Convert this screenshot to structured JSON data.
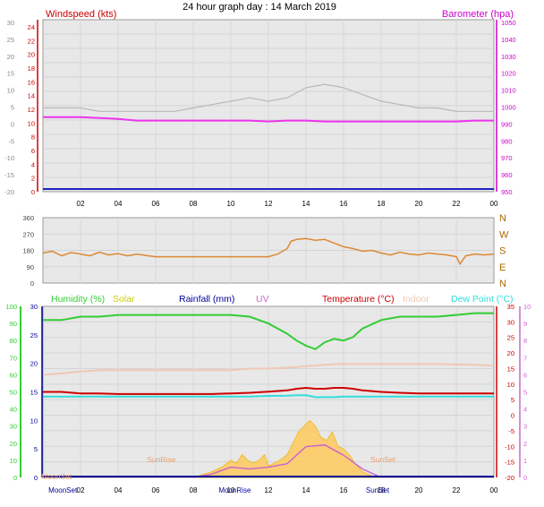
{
  "title": "24 hour graph day : 14 March 2019",
  "colors": {
    "wind_axis": "#cc0000",
    "baro_axis": "#cc00cc",
    "humidity": "#33cc33",
    "solar": "#cccc00",
    "rainfall": "#000099",
    "uv": "#cc66cc",
    "temperature": "#cc0000",
    "indoor": "#f0c8b4",
    "dewpoint": "#33dddd",
    "gust": "#b8b8b8",
    "wind_avg": "#2020c0",
    "barometer": "#ee33ee",
    "direction": "#dd8833",
    "solar_fill": "#ffcc66",
    "astro": "#e8a070",
    "plot_bg": "#e8e8e8"
  },
  "chart_data": [
    {
      "type": "line",
      "name": "wind-barometer",
      "labels": {
        "left": "Windspeed (kts)",
        "right": "Barometer (hpa)"
      },
      "x_ticks": [
        "02",
        "04",
        "06",
        "08",
        "10",
        "12",
        "14",
        "16",
        "18",
        "20",
        "22",
        "00"
      ],
      "y_left_ticks": [
        "24",
        "22",
        "20",
        "18",
        "16",
        "14",
        "12",
        "10",
        "8",
        "6",
        "4",
        "2",
        "0"
      ],
      "y_left_range": [
        0,
        24
      ],
      "y_outer_ticks": [
        "30",
        "25",
        "20",
        "15",
        "10",
        "5",
        "0",
        "-5",
        "-10",
        "-15",
        "-20"
      ],
      "y_right_ticks": [
        "1050",
        "1040",
        "1030",
        "1020",
        "1010",
        "1000",
        "990",
        "980",
        "970",
        "960",
        "950"
      ],
      "y_right_range": [
        950,
        1050
      ],
      "series": {
        "gust_x": [
          0,
          1,
          2,
          3,
          4,
          5,
          6,
          7,
          8,
          9,
          10,
          11,
          12,
          13,
          14,
          15,
          16,
          17,
          18,
          19,
          20,
          21,
          22,
          23,
          24
        ],
        "gust_y": [
          12,
          12,
          12,
          11.5,
          11.5,
          11.5,
          11.5,
          11.5,
          12,
          12.5,
          13,
          13.5,
          13,
          13.5,
          15,
          15.5,
          15,
          14,
          13,
          12.5,
          12,
          12,
          11.5,
          11.5,
          11.5
        ],
        "wind_y": [
          0,
          0,
          0,
          0,
          0,
          0,
          0,
          0,
          0,
          0,
          0,
          0,
          0,
          0,
          0,
          0,
          0,
          0,
          0,
          0,
          0,
          0,
          0,
          0,
          0
        ],
        "baro_x": [
          0,
          2,
          3,
          4,
          5,
          6,
          8,
          10,
          11,
          12,
          13,
          14,
          15,
          16,
          18,
          20,
          22,
          23,
          24
        ],
        "baro_y": [
          994,
          994,
          993.5,
          993,
          992,
          992,
          992,
          992,
          992,
          991.5,
          992,
          992,
          991.5,
          991.5,
          991.5,
          991.5,
          991.5,
          992,
          992
        ]
      }
    },
    {
      "type": "line",
      "name": "wind-direction",
      "y_left_ticks": [
        "360",
        "270",
        "180",
        "90",
        "0"
      ],
      "y_left_range": [
        0,
        360
      ],
      "y_right_labels": [
        "N",
        "W",
        "S",
        "E",
        "N"
      ],
      "series": {
        "dir_x": [
          0,
          0.5,
          1,
          1.5,
          2,
          2.5,
          3,
          3.5,
          4,
          4.5,
          5,
          5.5,
          6,
          8,
          10,
          12,
          12.5,
          13,
          13.2,
          13.5,
          14,
          14.5,
          15,
          15.5,
          16,
          16.5,
          17,
          17.5,
          18,
          18.5,
          19,
          19.5,
          20,
          20.5,
          21,
          21.5,
          22,
          22.2,
          22.5,
          23,
          23.5,
          24
        ],
        "dir_y": [
          165,
          175,
          150,
          168,
          160,
          150,
          170,
          155,
          162,
          150,
          160,
          152,
          145,
          145,
          145,
          145,
          160,
          190,
          230,
          240,
          245,
          235,
          240,
          220,
          200,
          190,
          175,
          180,
          165,
          155,
          170,
          160,
          155,
          165,
          160,
          155,
          145,
          105,
          150,
          160,
          155,
          160
        ]
      }
    },
    {
      "type": "line",
      "name": "environment",
      "labels": {
        "humidity": "Humidity (%)",
        "solar": "Solar",
        "rainfall": "Rainfall (mm)",
        "uv": "UV",
        "temperature": "Temperature (°C)",
        "indoor": "Indoor",
        "dewpoint": "Dew Point (°C)"
      },
      "x_ticks": [
        "02",
        "04",
        "06",
        "08",
        "10",
        "12",
        "14",
        "16",
        "18",
        "20",
        "22",
        "00"
      ],
      "y_inner_left_ticks": [
        "30",
        "25",
        "20",
        "15",
        "10",
        "5",
        "0"
      ],
      "y_inner_left_range": [
        0,
        30
      ],
      "y_outer_left_ticks": [
        "100",
        "90",
        "80",
        "70",
        "60",
        "50",
        "40",
        "30",
        "20",
        "10",
        "0"
      ],
      "y_outer_left_range": [
        0,
        100
      ],
      "y_inner_right_ticks": [
        "35",
        "30",
        "25",
        "20",
        "15",
        "10",
        "5",
        "0",
        "-5",
        "-10",
        "-15",
        "-20"
      ],
      "y_inner_right_range": [
        -20,
        35
      ],
      "y_outer_right_ticks": [
        "10",
        "9",
        "8",
        "7",
        "6",
        "5",
        "4",
        "3",
        "2",
        "1",
        "0"
      ],
      "astro_labels": {
        "moonset": "MoonSet",
        "sunrise": "SunRise",
        "moonrise": "MoonRise",
        "sunset": "SunSet"
      },
      "astro_hours": {
        "moonset": 1.2,
        "sunrise": 6.4,
        "moonrise": 10.4,
        "sunset": 18.0
      },
      "series": {
        "x": [
          0,
          1,
          2,
          3,
          4,
          5,
          6,
          7,
          8,
          9,
          10,
          11,
          12,
          13,
          13.5,
          14,
          14.5,
          15,
          15.5,
          16,
          16.5,
          17,
          18,
          19,
          20,
          21,
          22,
          23,
          24
        ],
        "humidity": [
          92,
          92,
          94,
          94,
          95,
          95,
          95,
          95,
          95,
          95,
          95,
          94,
          90,
          84,
          80,
          77,
          75,
          79,
          81,
          80,
          82,
          87,
          92,
          94,
          94,
          94,
          95,
          96,
          96
        ],
        "indoor": [
          13,
          13.5,
          14,
          14.5,
          14.5,
          14.5,
          14.5,
          14.5,
          14.5,
          14.5,
          14.5,
          15,
          15,
          15.3,
          15.5,
          15.8,
          16,
          16.2,
          16.4,
          16.5,
          16.5,
          16.5,
          16.5,
          16.5,
          16.5,
          16.5,
          16.3,
          16.2,
          16
        ],
        "temperature": [
          7.5,
          7.5,
          7,
          7,
          6.8,
          6.8,
          6.8,
          6.8,
          6.8,
          6.8,
          7,
          7.2,
          7.6,
          8,
          8.5,
          8.8,
          8.5,
          8.5,
          8.8,
          8.8,
          8.5,
          8,
          7.5,
          7.2,
          7,
          7,
          7,
          7,
          7
        ],
        "dewpoint": [
          6,
          6,
          6,
          6,
          6,
          6,
          6,
          6,
          6,
          6,
          6,
          6,
          6.2,
          6.3,
          6.4,
          6.4,
          5.8,
          5.8,
          5.8,
          6,
          6,
          6,
          6,
          6,
          6,
          6,
          6,
          6,
          6
        ],
        "solar_x": [
          8,
          8.5,
          9,
          9.3,
          9.6,
          10,
          10.3,
          10.6,
          10.9,
          11.2,
          11.5,
          11.8,
          12,
          12.3,
          12.6,
          13,
          13.3,
          13.6,
          13.9,
          14.2,
          14.5,
          14.8,
          15.1,
          15.4,
          15.7,
          16,
          16.3,
          16.6,
          17,
          17.5,
          18
        ],
        "solar": [
          0,
          0.5,
          1,
          1.5,
          2,
          3,
          2.5,
          4,
          3,
          2.5,
          3,
          4,
          2,
          2.5,
          3,
          4,
          6,
          8,
          9,
          10,
          9,
          7,
          6.5,
          8,
          5.5,
          5,
          4,
          2.5,
          1,
          0.3,
          0
        ],
        "uv_x": [
          8,
          9,
          10,
          11,
          12,
          13,
          14,
          15,
          16,
          17,
          18
        ],
        "uv": [
          0,
          0.2,
          0.6,
          0.5,
          0.6,
          0.8,
          1.8,
          1.9,
          1.3,
          0.5,
          0
        ]
      }
    }
  ]
}
